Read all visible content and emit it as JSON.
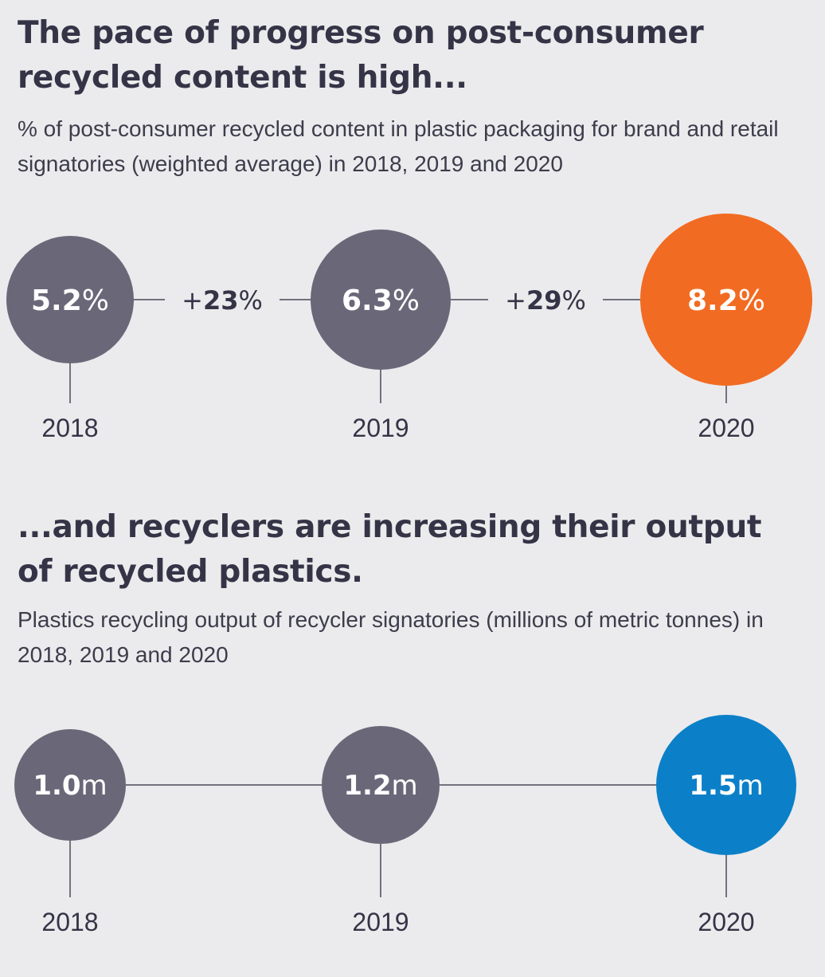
{
  "chart_data": [
    {
      "type": "bubble-timeline",
      "title": "The pace of progress on post-consumer recycled content is high...",
      "subtitle": "% of post-consumer recycled content in plastic packaging for brand and retail signatories (weighted average) in 2018, 2019 and 2020",
      "unit": "%",
      "points": [
        {
          "year": "2018",
          "value": "5.2",
          "color": "#6a6878"
        },
        {
          "year": "2019",
          "value": "6.3",
          "color": "#6a6878"
        },
        {
          "year": "2020",
          "value": "8.2",
          "color": "#f26b22"
        }
      ],
      "changes": [
        {
          "sign": "+",
          "value": "23",
          "unit": "%"
        },
        {
          "sign": "+",
          "value": "29",
          "unit": "%"
        }
      ]
    },
    {
      "type": "bubble-timeline",
      "title": "...and recyclers are increasing their output of recycled plastics.",
      "subtitle": "Plastics recycling output of recycler signatories (millions of metric tonnes) in 2018, 2019 and 2020",
      "unit": "m",
      "points": [
        {
          "year": "2018",
          "value": "1.0",
          "color": "#6a6878"
        },
        {
          "year": "2019",
          "value": "1.2",
          "color": "#6a6878"
        },
        {
          "year": "2020",
          "value": "1.5",
          "color": "#0b80c8"
        }
      ]
    }
  ]
}
